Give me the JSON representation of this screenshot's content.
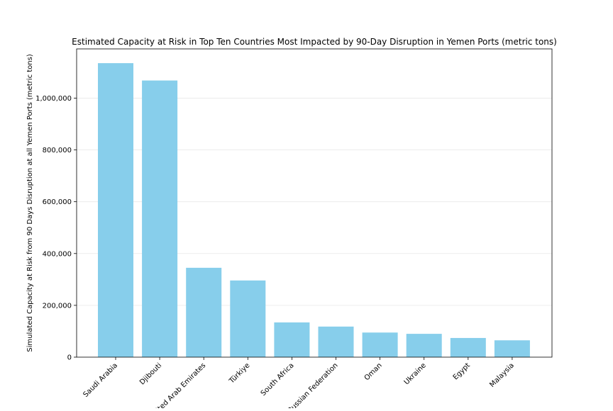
{
  "chart_data": {
    "type": "bar",
    "title": "Estimated Capacity at Risk in Top Ten Countries Most Impacted by 90-Day Disruption in Yemen Ports (metric tons)",
    "xlabel": "",
    "ylabel": "Simulated Capacity at Risk from 90 Days Disruption at all Yemen Ports (metric tons)",
    "categories": [
      "Saudi Arabia",
      "Djibouti",
      "United Arab Emirates",
      "Türkiye",
      "South Africa",
      "Russian Federation",
      "Oman",
      "Ukraine",
      "Egypt",
      "Malaysia"
    ],
    "values": [
      1135000,
      1068000,
      345000,
      296000,
      134000,
      118000,
      95000,
      90000,
      74000,
      65000
    ],
    "ylim": [
      0,
      1190000
    ],
    "yticks": [
      0,
      200000,
      400000,
      600000,
      800000,
      1000000
    ],
    "ytick_labels": [
      "0",
      "200,000",
      "400,000",
      "600,000",
      "800,000",
      "1,000,000"
    ],
    "grid": "y",
    "legend": "none",
    "bar_color": "#87ceeb"
  }
}
